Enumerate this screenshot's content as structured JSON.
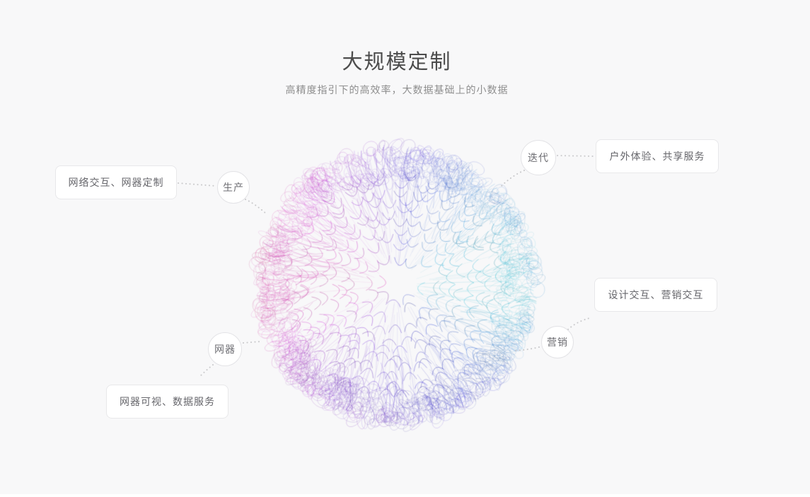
{
  "page": {
    "title": "大规模定制",
    "subtitle": "高精度指引下的高效率，大数据基础上的小数据"
  },
  "nodes": [
    {
      "id": "production",
      "label": "生产"
    },
    {
      "id": "iteration",
      "label": "迭代"
    },
    {
      "id": "marketing",
      "label": "营销"
    },
    {
      "id": "net-device",
      "label": "网器"
    }
  ],
  "cards": [
    {
      "id": "network-interaction-customization",
      "label": "网络交互、网器定制"
    },
    {
      "id": "outdoor-experience-sharing",
      "label": "户外体验、共享服务"
    },
    {
      "id": "design-marketing-interaction",
      "label": "设计交互、营销交互"
    },
    {
      "id": "device-visual-data-service",
      "label": "网器可视、数据服务"
    }
  ],
  "colors": {
    "background": "#f8f8f9",
    "card_background": "#ffffff",
    "card_border": "#e8e8ea",
    "connector": "#c9c9cb",
    "title_text": "#4c4c4c",
    "subtitle_text": "#8e8e8e",
    "label_text": "#66666b",
    "sphere_palette": {
      "left": "#c257b4",
      "top": "#5f6cc0",
      "right": "#49cbe0",
      "bottom": "#5b5fae"
    }
  }
}
